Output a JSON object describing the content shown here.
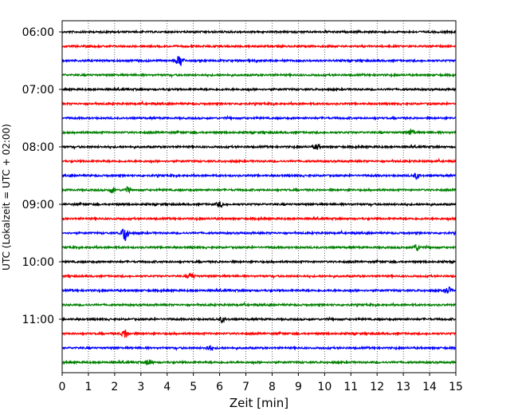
{
  "chart_data": {
    "type": "line",
    "title": "",
    "xlabel": "Zeit  [min]",
    "ylabel": "UTC (Lokalzeit = UTC + 02:00)",
    "xlim": [
      0,
      15
    ],
    "x_ticks": [
      0,
      1,
      2,
      3,
      4,
      5,
      6,
      7,
      8,
      9,
      10,
      11,
      12,
      13,
      14,
      15
    ],
    "y_tick_labels": [
      "06:00",
      "07:00",
      "08:00",
      "09:00",
      "10:00",
      "11:00"
    ],
    "grid": "vertical dotted",
    "trace_colors": [
      "#000000",
      "#ff0000",
      "#0000ff",
      "#008000"
    ],
    "trace_start_times": [
      "06:00",
      "06:15",
      "06:30",
      "06:45",
      "07:00",
      "07:15",
      "07:30",
      "07:45",
      "08:00",
      "08:15",
      "08:30",
      "08:45",
      "09:00",
      "09:15",
      "09:30",
      "09:45",
      "10:00",
      "10:15",
      "10:30",
      "10:45",
      "11:00",
      "11:15",
      "11:30",
      "11:45"
    ],
    "events": [
      {
        "trace": 2,
        "x": 4.5,
        "amp": 7
      },
      {
        "trace": 7,
        "x": 13.3,
        "amp": 4
      },
      {
        "trace": 8,
        "x": 9.7,
        "amp": 3
      },
      {
        "trace": 10,
        "x": 13.5,
        "amp": 3
      },
      {
        "trace": 11,
        "x": 1.9,
        "amp": 3
      },
      {
        "trace": 11,
        "x": 2.5,
        "amp": 3
      },
      {
        "trace": 12,
        "x": 6.0,
        "amp": 3
      },
      {
        "trace": 14,
        "x": 2.4,
        "amp": 10
      },
      {
        "trace": 15,
        "x": 13.5,
        "amp": 4
      },
      {
        "trace": 17,
        "x": 4.9,
        "amp": 4
      },
      {
        "trace": 18,
        "x": 14.7,
        "amp": 4
      },
      {
        "trace": 20,
        "x": 6.1,
        "amp": 3
      },
      {
        "trace": 21,
        "x": 2.4,
        "amp": 5
      },
      {
        "trace": 22,
        "x": 5.6,
        "amp": 3
      },
      {
        "trace": 23,
        "x": 3.3,
        "amp": 4
      }
    ]
  }
}
